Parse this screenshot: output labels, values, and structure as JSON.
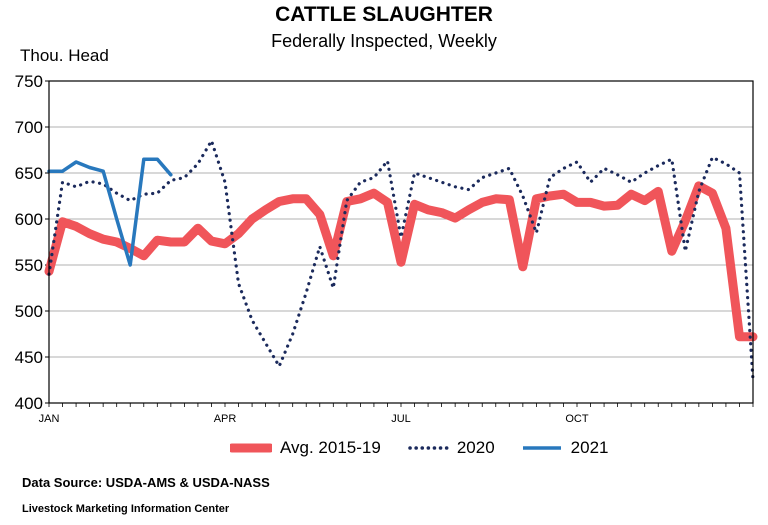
{
  "chart_data": {
    "type": "line",
    "title": "CATTLE SLAUGHTER",
    "subtitle": "Federally Inspected, Weekly",
    "ylabel": "Thou. Head",
    "xlabel": "",
    "ylim": [
      400,
      750
    ],
    "yticks": [
      400,
      450,
      500,
      550,
      600,
      650,
      700,
      750
    ],
    "x_range": [
      1,
      53
    ],
    "xticks": [
      {
        "label": "JAN",
        "week": 1
      },
      {
        "label": "APR",
        "week": 14
      },
      {
        "label": "JUL",
        "week": 27
      },
      {
        "label": "OCT",
        "week": 40
      }
    ],
    "series": [
      {
        "name": "Avg. 2015-19",
        "color": "#f0555a",
        "style": "solid-thick",
        "values": [
          543,
          597,
          592,
          584,
          578,
          575,
          568,
          560,
          577,
          575,
          575,
          590,
          576,
          573,
          584,
          600,
          610,
          619,
          622,
          622,
          605,
          560,
          619,
          622,
          628,
          618,
          553,
          616,
          610,
          607,
          601,
          610,
          618,
          622,
          621,
          548,
          622,
          625,
          627,
          618,
          618,
          614,
          615,
          627,
          620,
          630,
          565,
          598,
          636,
          628,
          590,
          472,
          472
        ]
      },
      {
        "name": "2020",
        "color": "#1b2a5c",
        "style": "dotted",
        "values": [
          540,
          640,
          635,
          641,
          638,
          628,
          620,
          627,
          628,
          642,
          645,
          660,
          685,
          640,
          530,
          490,
          465,
          440,
          475,
          520,
          570,
          525,
          620,
          640,
          645,
          663,
          580,
          650,
          645,
          640,
          635,
          632,
          645,
          650,
          655,
          625,
          585,
          645,
          655,
          662,
          640,
          655,
          648,
          640,
          650,
          658,
          665,
          565,
          630,
          667,
          660,
          650,
          425
        ]
      },
      {
        "name": "2021",
        "color": "#2878bd",
        "style": "solid",
        "values": [
          652,
          652,
          662,
          656,
          652,
          600,
          550,
          665,
          665,
          648
        ]
      }
    ]
  },
  "footer": {
    "source": "Data Source:  USDA-AMS & USDA-NASS",
    "org": "Livestock Marketing Information Center"
  }
}
